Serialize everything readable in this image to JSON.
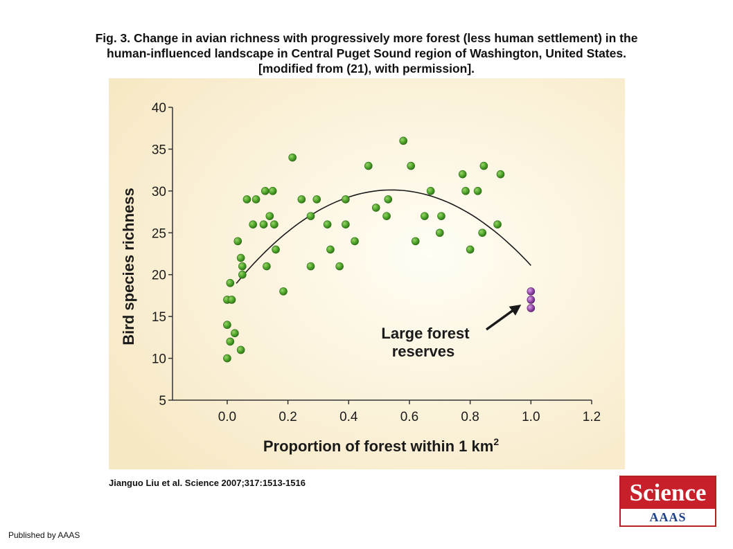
{
  "figure": {
    "title_line1": "Fig. 3. Change in avian richness with progressively more forest (less human settlement) in the",
    "title_line2": "human-influenced landscape in Central Puget Sound region of Washington, United States.",
    "title_line3": "[modified from (21), with permission]."
  },
  "citation": "Jianguo Liu et al. Science 2007;317:1513-1516",
  "publisher": "Published by AAAS",
  "logo": {
    "top_text": "Science",
    "bottom_text": "AAAS"
  },
  "colors": {
    "panel_bg": "#fbf2d9",
    "green_point": "#4fa82b",
    "purple_point": "#9b4fb0",
    "curve": "#1a1a1a"
  },
  "chart_data": {
    "type": "scatter",
    "xlabel": "Proportion of forest within 1 km",
    "xlabel_superscript": "2",
    "ylabel": "Bird species richness",
    "xlim": [
      -0.18,
      1.2
    ],
    "ylim": [
      5,
      40
    ],
    "xticks": [
      0.0,
      0.2,
      0.4,
      0.6,
      0.8,
      1.0,
      1.2
    ],
    "xtick_labels": [
      "0.0",
      "0.2",
      "0.4",
      "0.6",
      "0.8",
      "1.0",
      "1.2"
    ],
    "yticks": [
      5,
      10,
      15,
      20,
      25,
      30,
      35,
      40
    ],
    "ytick_labels": [
      "5",
      "10",
      "15",
      "20",
      "25",
      "30",
      "35",
      "40"
    ],
    "annotation": {
      "line1": "Large forest",
      "line2": "reserves"
    },
    "series": [
      {
        "points": [
          [
            0.0,
            10
          ],
          [
            0.0,
            14
          ],
          [
            0.0,
            17
          ],
          [
            0.01,
            19
          ],
          [
            0.01,
            12
          ],
          [
            0.015,
            17
          ],
          [
            0.025,
            13
          ],
          [
            0.035,
            24
          ],
          [
            0.045,
            11
          ],
          [
            0.045,
            22
          ],
          [
            0.05,
            21
          ],
          [
            0.05,
            20
          ],
          [
            0.065,
            29
          ],
          [
            0.085,
            26
          ],
          [
            0.095,
            29
          ],
          [
            0.12,
            26
          ],
          [
            0.125,
            30
          ],
          [
            0.13,
            21
          ],
          [
            0.14,
            27
          ],
          [
            0.15,
            30
          ],
          [
            0.155,
            26
          ],
          [
            0.16,
            23
          ],
          [
            0.185,
            18
          ],
          [
            0.215,
            34
          ],
          [
            0.245,
            29
          ],
          [
            0.275,
            27
          ],
          [
            0.275,
            21
          ],
          [
            0.295,
            29
          ],
          [
            0.33,
            26
          ],
          [
            0.34,
            23
          ],
          [
            0.37,
            21
          ],
          [
            0.39,
            29
          ],
          [
            0.39,
            26
          ],
          [
            0.42,
            24
          ],
          [
            0.465,
            33
          ],
          [
            0.49,
            28
          ],
          [
            0.525,
            27
          ],
          [
            0.53,
            29
          ],
          [
            0.58,
            36
          ],
          [
            0.605,
            33
          ],
          [
            0.62,
            24
          ],
          [
            0.65,
            27
          ],
          [
            0.67,
            30
          ],
          [
            0.7,
            25
          ],
          [
            0.705,
            27
          ],
          [
            0.775,
            32
          ],
          [
            0.785,
            30
          ],
          [
            0.8,
            23
          ],
          [
            0.825,
            30
          ],
          [
            0.84,
            25
          ],
          [
            0.845,
            33
          ],
          [
            0.89,
            26
          ],
          [
            0.9,
            32
          ]
        ]
      },
      {
        "points": [
          [
            1.0,
            18
          ],
          [
            1.0,
            17
          ],
          [
            1.0,
            16
          ]
        ]
      }
    ],
    "fit_curve": {
      "a": -42.8,
      "b": 46.3,
      "c": 17.6,
      "x_range": [
        0.03,
        1.0
      ]
    }
  }
}
